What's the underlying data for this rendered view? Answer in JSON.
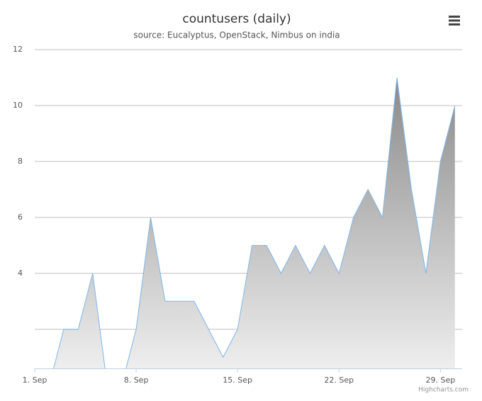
{
  "chart_data": {
    "type": "area",
    "title": "countusers (daily)",
    "subtitle": "source: Eucalyptus, OpenStack, Nimbus on india",
    "credits": "Highcharts.com",
    "x": [
      1,
      2,
      3,
      4,
      5,
      6,
      7,
      8,
      9,
      10,
      11,
      12,
      13,
      14,
      15,
      16,
      17,
      18,
      19,
      20,
      21,
      22,
      23,
      24,
      25,
      26,
      27,
      28,
      29,
      30
    ],
    "series": [
      {
        "name": "countusers",
        "color": "#7cb5ec",
        "values": [
          0,
          0,
          2,
          2,
          4,
          0,
          0,
          2,
          6,
          3,
          3,
          3,
          2,
          1,
          2,
          5,
          5,
          4,
          5,
          4,
          5,
          4,
          6,
          7,
          6,
          11,
          7,
          4,
          8,
          10
        ]
      }
    ],
    "xlim": [
      1,
      30.5
    ],
    "xticks": [
      {
        "value": 1,
        "label": "1. Sep"
      },
      {
        "value": 8,
        "label": "8. Sep"
      },
      {
        "value": 15,
        "label": "15. Sep"
      },
      {
        "value": 22,
        "label": "22. Sep"
      },
      {
        "value": 29,
        "label": "29. Sep"
      }
    ],
    "ylim": [
      0.6,
      12
    ],
    "yticks": [
      4,
      6,
      8,
      10,
      12
    ],
    "y_gridlines": [
      2,
      4,
      6,
      8,
      10,
      12
    ],
    "grid": true
  }
}
